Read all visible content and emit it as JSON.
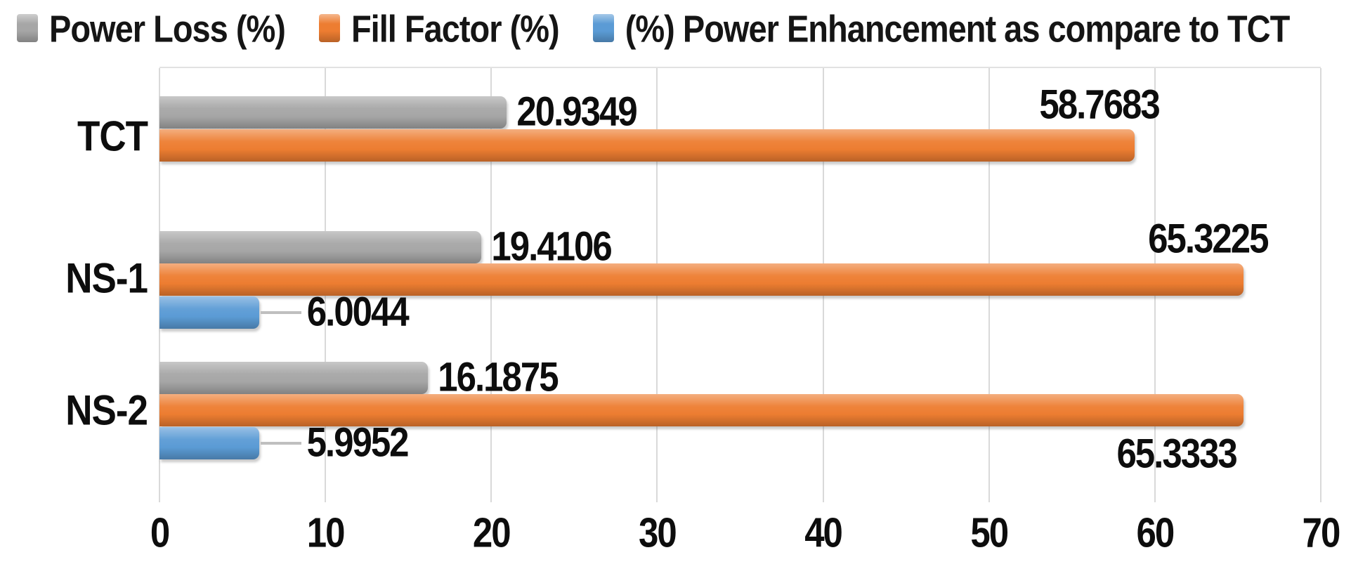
{
  "figure": {
    "background": "#ffffff",
    "text_color": "#0d0d0d",
    "gridline_color": "#d9d9d9"
  },
  "legend": {
    "items": [
      {
        "label": "Power Loss (%)",
        "color": "#a6a6a6"
      },
      {
        "label": "Fill Factor (%)",
        "color": "#ed7d31"
      },
      {
        "label": "(%) Power Enhancement as compare to TCT",
        "color": "#5b9bd5"
      }
    ]
  },
  "chart_data": {
    "type": "bar",
    "orientation": "horizontal",
    "title": "",
    "xlabel": "",
    "ylabel": "",
    "categories": [
      "TCT",
      "NS-1",
      "NS-2"
    ],
    "series": [
      {
        "name": "Power Loss (%)",
        "color": "#a6a6a6",
        "values": [
          20.9349,
          19.4106,
          16.1875
        ],
        "data_labels": [
          "20.9349",
          "19.4106",
          "16.1875"
        ],
        "label_positions": [
          "end-right",
          "end-right",
          "end-right"
        ]
      },
      {
        "name": "Fill Factor (%)",
        "color": "#ed7d31",
        "values": [
          58.7683,
          65.3225,
          65.3333
        ],
        "data_labels": [
          "58.7683",
          "65.3225",
          "65.3333"
        ],
        "label_positions": [
          "above-end",
          "above-end",
          "below-end"
        ]
      },
      {
        "name": "(%) Power Enhancement as compare to TCT",
        "color": "#5b9bd5",
        "values": [
          null,
          6.0044,
          5.9952
        ],
        "data_labels": [
          null,
          "6.0044",
          "5.9952"
        ],
        "label_positions": [
          null,
          "leader-right",
          "leader-right"
        ]
      }
    ],
    "xlim": [
      0,
      70
    ],
    "x_ticks": [
      "0",
      "10",
      "20",
      "30",
      "40",
      "50",
      "60",
      "70"
    ],
    "grid": "vertical-major",
    "legend_position": "top-left"
  }
}
